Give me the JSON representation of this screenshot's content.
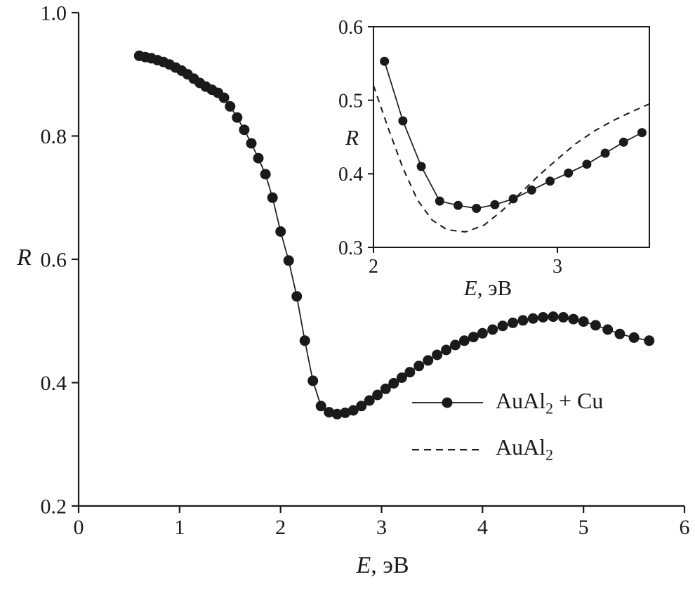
{
  "figure": {
    "background": "#ffffff",
    "ink": "#1a1a1a"
  },
  "legend": {
    "entries": [
      {
        "label": "AuAl₂ + Cu",
        "prefix": "AuAl",
        "sub": "2",
        "suffix": " + Cu",
        "style": "solid",
        "marker": "circle"
      },
      {
        "label": "AuAl₂",
        "prefix": "AuAl",
        "sub": "2",
        "suffix": "",
        "style": "dashed",
        "marker": "none"
      }
    ],
    "position": "lower-right-of-main"
  },
  "chart_data": [
    {
      "id": "main",
      "type": "line",
      "title": "",
      "xlabel_var": "E",
      "xlabel_unit": ", эВ",
      "ylabel": "R",
      "xlim": [
        0,
        6
      ],
      "ylim": [
        0.2,
        1.0
      ],
      "xticks": [
        0,
        1,
        2,
        3,
        4,
        5,
        6
      ],
      "xtick_labels": [
        "0",
        "1",
        "2",
        "3",
        "4",
        "5",
        "6"
      ],
      "yticks": [
        0.2,
        0.4,
        0.6,
        0.8,
        1.0
      ],
      "ytick_labels": [
        "0.2",
        "0.4",
        "0.6",
        "0.8",
        "1.0"
      ],
      "grid": false,
      "series": [
        {
          "name": "AuAl₂ + Cu",
          "style": "solid",
          "marker": "circle",
          "x": [
            0.6,
            0.66,
            0.72,
            0.78,
            0.84,
            0.9,
            0.96,
            1.02,
            1.08,
            1.14,
            1.2,
            1.26,
            1.32,
            1.38,
            1.44,
            1.5,
            1.57,
            1.64,
            1.71,
            1.78,
            1.85,
            1.92,
            2.0,
            2.08,
            2.16,
            2.24,
            2.32,
            2.4,
            2.48,
            2.56,
            2.64,
            2.72,
            2.8,
            2.88,
            2.96,
            3.04,
            3.12,
            3.2,
            3.28,
            3.37,
            3.46,
            3.55,
            3.64,
            3.73,
            3.82,
            3.91,
            4.0,
            4.1,
            4.2,
            4.3,
            4.4,
            4.5,
            4.6,
            4.7,
            4.8,
            4.9,
            5.0,
            5.12,
            5.24,
            5.36,
            5.5,
            5.65
          ],
          "y": [
            0.93,
            0.928,
            0.926,
            0.923,
            0.92,
            0.916,
            0.911,
            0.906,
            0.9,
            0.893,
            0.886,
            0.88,
            0.875,
            0.87,
            0.862,
            0.848,
            0.83,
            0.81,
            0.788,
            0.764,
            0.738,
            0.7,
            0.645,
            0.598,
            0.54,
            0.468,
            0.403,
            0.362,
            0.352,
            0.349,
            0.351,
            0.355,
            0.362,
            0.371,
            0.38,
            0.39,
            0.399,
            0.408,
            0.417,
            0.427,
            0.436,
            0.445,
            0.453,
            0.461,
            0.468,
            0.474,
            0.48,
            0.486,
            0.492,
            0.497,
            0.501,
            0.504,
            0.506,
            0.507,
            0.506,
            0.503,
            0.499,
            0.493,
            0.486,
            0.479,
            0.473,
            0.468
          ]
        }
      ]
    },
    {
      "id": "inset",
      "type": "line",
      "title": "",
      "xlabel_var": "E",
      "xlabel_unit": ", эВ",
      "ylabel": "R",
      "xlim": [
        2,
        3.5
      ],
      "ylim": [
        0.3,
        0.6
      ],
      "xticks": [
        2,
        3
      ],
      "xtick_labels": [
        "2",
        "3"
      ],
      "yticks": [
        0.3,
        0.4,
        0.5,
        0.6
      ],
      "ytick_labels": [
        "0.3",
        "0.4",
        "0.5",
        "0.6"
      ],
      "grid": false,
      "series": [
        {
          "name": "AuAl₂ + Cu",
          "style": "solid",
          "marker": "circle",
          "x": [
            2.06,
            2.16,
            2.26,
            2.36,
            2.46,
            2.56,
            2.66,
            2.76,
            2.86,
            2.96,
            3.06,
            3.16,
            3.26,
            3.36,
            3.46
          ],
          "y": [
            0.553,
            0.472,
            0.41,
            0.363,
            0.357,
            0.353,
            0.358,
            0.366,
            0.378,
            0.39,
            0.401,
            0.413,
            0.428,
            0.443,
            0.456
          ]
        },
        {
          "name": "AuAl₂",
          "style": "dashed",
          "marker": "none",
          "x": [
            2.0,
            2.08,
            2.16,
            2.24,
            2.32,
            2.4,
            2.5,
            2.6,
            2.7,
            2.8,
            2.9,
            3.0,
            3.1,
            3.2,
            3.3,
            3.4,
            3.5
          ],
          "y": [
            0.52,
            0.462,
            0.408,
            0.364,
            0.337,
            0.324,
            0.321,
            0.33,
            0.35,
            0.374,
            0.398,
            0.42,
            0.441,
            0.458,
            0.472,
            0.484,
            0.495
          ]
        }
      ]
    }
  ]
}
